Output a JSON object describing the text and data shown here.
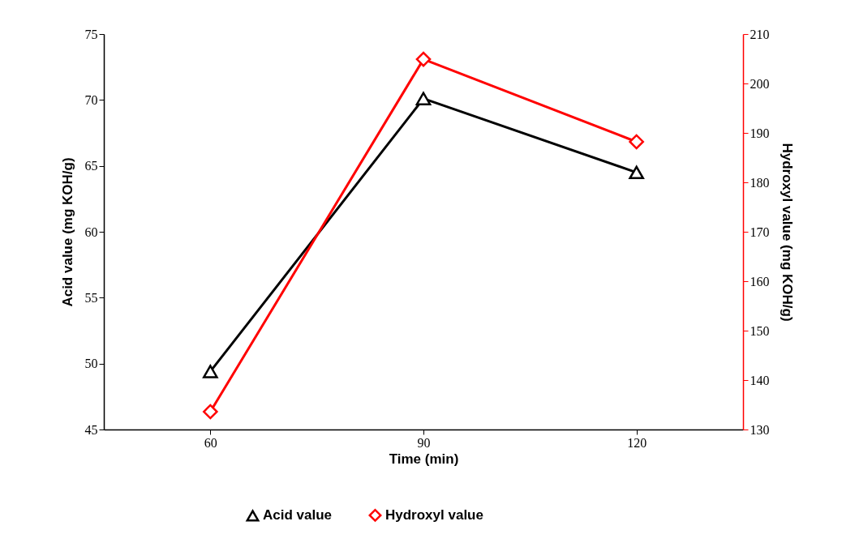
{
  "chart_data": {
    "type": "line",
    "xlabel": "Time (min)",
    "ylabel": "Acid value (mg KOH/g)",
    "y2label": "Hydroxyl value (mg KOH/g)",
    "categories": [
      "60",
      "90",
      "120"
    ],
    "series": [
      {
        "name": "Acid value",
        "color": "#000000",
        "marker": "triangle",
        "values": [
          49.4,
          70.1,
          64.5
        ]
      },
      {
        "name": "Hydroxyl value",
        "color": "#ff0000",
        "marker": "diamond",
        "axis": "y2",
        "values": [
          133.6,
          204.9,
          188.2
        ]
      }
    ],
    "ylim": [
      45,
      75
    ],
    "yticks": [
      45,
      50,
      55,
      60,
      65,
      70,
      75
    ],
    "y2lim": [
      130,
      210
    ],
    "y2ticks": [
      130,
      140,
      150,
      160,
      170,
      180,
      190,
      200,
      210
    ],
    "legend": "bottom",
    "line_style": "solid"
  }
}
